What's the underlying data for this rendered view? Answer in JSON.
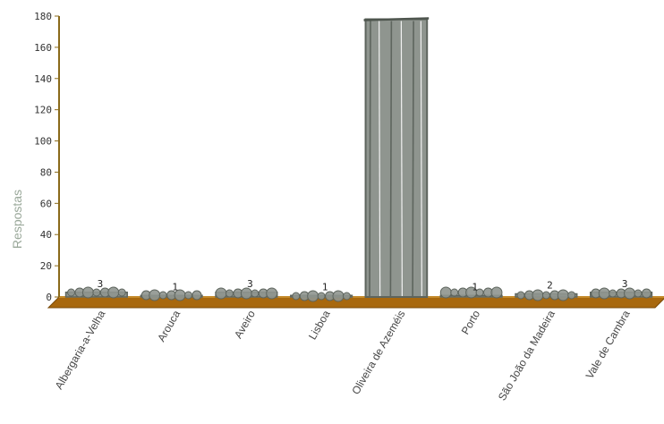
{
  "chart_data": {
    "type": "bar",
    "title": "",
    "xlabel": "",
    "ylabel": "Respostas",
    "categories": [
      "Albergaria-a-Velha",
      "Arouca",
      "Aveiro",
      "Lisboa",
      "Oliveira de Azeméis",
      "Porto",
      "São João da Madeira",
      "Vale de Cambra"
    ],
    "values": [
      3,
      1,
      3,
      1,
      178,
      1,
      2,
      3
    ],
    "data_labels": [
      "3",
      "1",
      "3",
      "1",
      "",
      "1",
      "2",
      "3"
    ],
    "ylim": [
      0,
      180
    ],
    "yticks": [
      0,
      20,
      40,
      60,
      80,
      100,
      120,
      140,
      160,
      180
    ],
    "grid": false,
    "colors": {
      "bar_fill": "#8f958f",
      "bar_stroke": "#5e655e",
      "floor": "#a8680e",
      "floor_top": "#c48a2a",
      "axis": "#8a6a1a",
      "ylabel": "#9aa89a"
    }
  }
}
